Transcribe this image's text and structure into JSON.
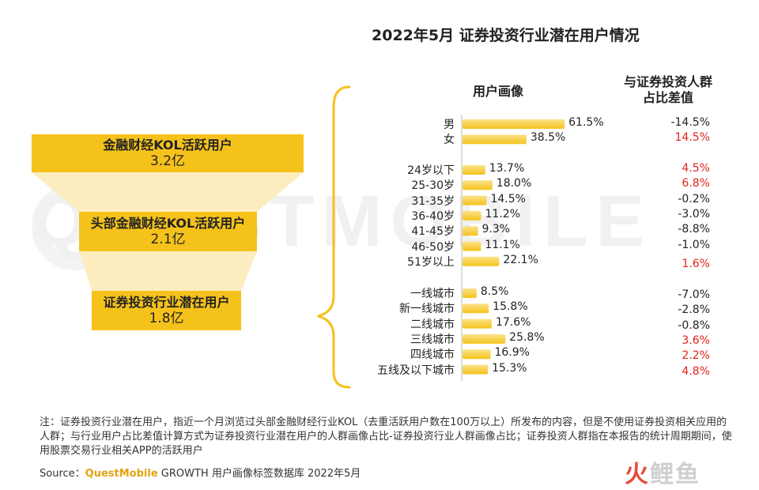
{
  "title": "2022年5月 证券投资行业潜在用户情况",
  "watermark": "QUESTMOBILE",
  "funnel": [
    {
      "label": "金融财经KOL活跃用户",
      "value": "3.2亿"
    },
    {
      "label": "头部金融财经KOL活跃用户",
      "value": "2.1亿"
    },
    {
      "label": "证券投资行业潜在用户",
      "value": "1.8亿"
    }
  ],
  "headers": {
    "portrait": "用户画像",
    "diff_line1": "与证券投资人群",
    "diff_line2": "占比差值"
  },
  "colors": {
    "bar": "#f5c21b",
    "bar_light": "#fbe38a",
    "positive": "#e0231b",
    "negative": "#222222",
    "funnel": "#f5c21b"
  },
  "chart_data": {
    "type": "bar",
    "orientation": "horizontal",
    "groups": [
      {
        "categories": [
          "男",
          "女"
        ],
        "values": [
          61.5,
          38.5
        ],
        "labels": [
          "61.5%",
          "38.5%"
        ],
        "diffs": [
          "-14.5%",
          "14.5%"
        ]
      },
      {
        "categories": [
          "24岁以下",
          "25-30岁",
          "31-35岁",
          "36-40岁",
          "41-45岁",
          "46-50岁",
          "51岁以上"
        ],
        "values": [
          13.7,
          18.0,
          14.5,
          11.2,
          9.3,
          11.1,
          22.1
        ],
        "labels": [
          "13.7%",
          "18.0%",
          "14.5%",
          "11.2%",
          "9.3%",
          "11.1%",
          "22.1%"
        ],
        "diffs": [
          "4.5%",
          "6.8%",
          "-0.2%",
          "-3.0%",
          "-8.8%",
          "-1.0%",
          "1.6%"
        ]
      },
      {
        "categories": [
          "一线城市",
          "新一线城市",
          "二线城市",
          "三线城市",
          "四线城市",
          "五线及以下城市"
        ],
        "values": [
          8.5,
          15.8,
          17.6,
          25.8,
          16.9,
          15.3
        ],
        "labels": [
          "8.5%",
          "15.8%",
          "17.6%",
          "25.8%",
          "16.9%",
          "15.3%"
        ],
        "diffs": [
          "-7.0%",
          "-2.8%",
          "-0.8%",
          "3.6%",
          "2.2%",
          "4.8%"
        ]
      }
    ]
  },
  "note": "注：证券投资行业潜在用户，指近一个月浏览过头部金融财经行业KOL（去重活跃用户数在100万以上）所发布的内容，但是不使用证券投资相关应用的人群；与行业用户占比差值计算方式为证券投资行业潜在用户的人群画像占比-证券投资行业人群画像占比；证券投资人群指在本报告的统计周期期间，使用股票交易行业相关APP的活跃用户",
  "source": {
    "prefix": "Source：",
    "brand": "QuestMobile",
    "rest": " GROWTH 用户画像标签数据库 2022年5月"
  },
  "logo": {
    "part1": "火",
    "part2": "鲤鱼"
  }
}
